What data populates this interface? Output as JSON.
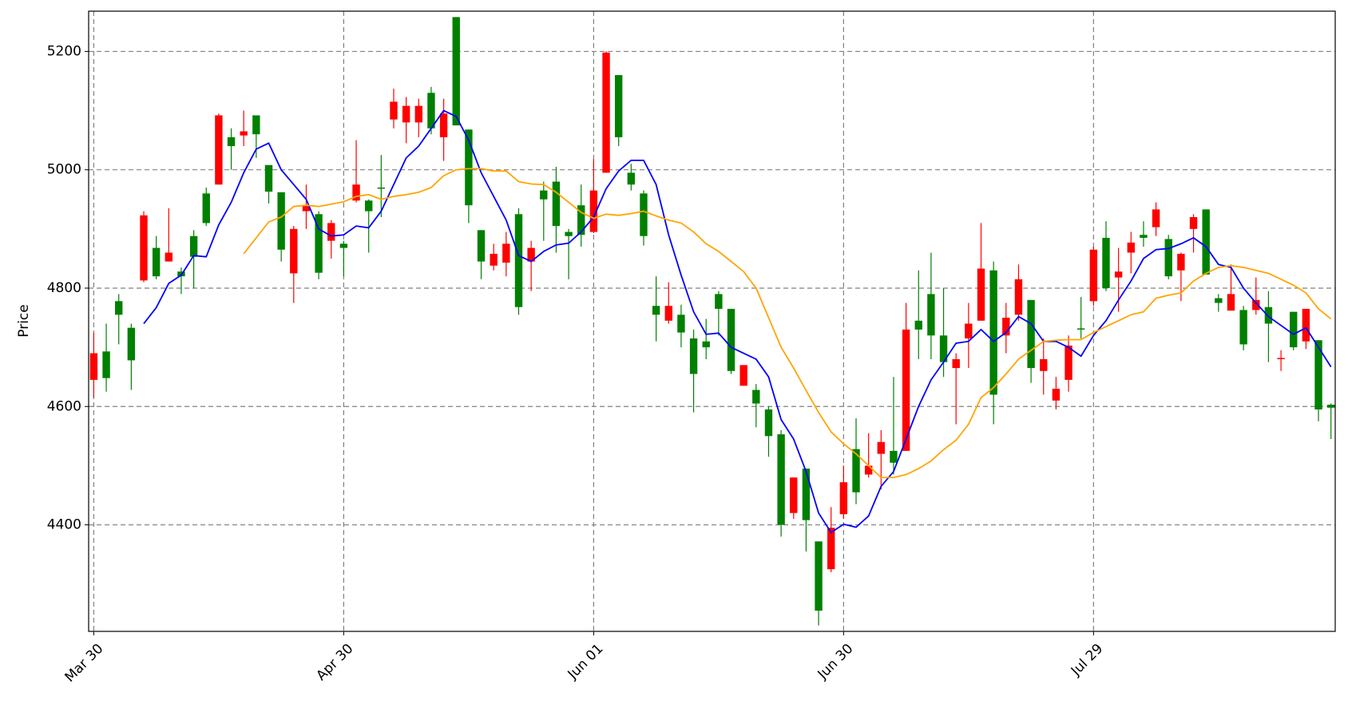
{
  "chart_data": {
    "type": "candlestick",
    "y_label": "Price",
    "up_color": "green",
    "down_color": "red",
    "grid": true,
    "xlim": [
      -0.41,
      99.34
    ],
    "xticks": [
      {
        "value": 0,
        "label": "Mar 30"
      },
      {
        "value": 20,
        "label": "Apr 30"
      },
      {
        "value": 40,
        "label": "Jun 01"
      },
      {
        "value": 60,
        "label": "Jun 30"
      },
      {
        "value": 80,
        "label": "Jul 29"
      }
    ],
    "ylim": [
      4220,
      5268
    ],
    "yticks": [
      4400,
      4600,
      4800,
      5000,
      5200
    ],
    "open": [
      4690,
      4648,
      4755,
      4678,
      4923,
      4820,
      4860,
      4820,
      4853,
      4910,
      5092,
      5040,
      5065,
      5060,
      4963,
      4865,
      4900,
      4940,
      4826,
      4910,
      4868,
      4975,
      4930,
      4968,
      5115,
      5108,
      5108,
      5070,
      5095,
      5075,
      4940,
      4845,
      4858,
      4875,
      4768,
      4868,
      4950,
      4905,
      4888,
      4890,
      4965,
      5198,
      5055,
      4975,
      4888,
      4755,
      4770,
      4725,
      4655,
      4700,
      4765,
      4660,
      4670,
      4605,
      4550,
      4400,
      4480,
      4408,
      4255,
      4395,
      4472,
      4455,
      4500,
      4540,
      4505,
      4730,
      4730,
      4720,
      4675,
      4680,
      4740,
      4833,
      4620,
      4750,
      4815,
      4665,
      4680,
      4630,
      4703,
      4730,
      4865,
      4800,
      4828,
      4877,
      4885,
      4933,
      4820,
      4858,
      4920,
      4823,
      4775,
      4790,
      4705,
      4780,
      4740,
      4682,
      4700,
      4765,
      4595,
      4598
    ],
    "high": [
      4725,
      4740,
      4790,
      4740,
      4930,
      4888,
      4935,
      4835,
      4898,
      4970,
      5095,
      5070,
      5100,
      5092,
      5008,
      4962,
      4905,
      4975,
      4930,
      4915,
      4880,
      5050,
      4950,
      5025,
      5137,
      5123,
      5120,
      5140,
      5120,
      5258,
      5068,
      4898,
      4875,
      4895,
      4935,
      4880,
      4980,
      5005,
      4900,
      4975,
      5018,
      5200,
      5160,
      5010,
      4965,
      4820,
      4810,
      4772,
      4730,
      4748,
      4795,
      4765,
      4670,
      4638,
      4600,
      4560,
      4480,
      4495,
      4372,
      4430,
      4500,
      4580,
      4555,
      4560,
      4650,
      4775,
      4830,
      4860,
      4800,
      4690,
      4775,
      4910,
      4845,
      4775,
      4840,
      4780,
      4715,
      4650,
      4720,
      4785,
      4870,
      4913,
      4868,
      4895,
      4913,
      4945,
      4890,
      4860,
      4925,
      4933,
      4790,
      4840,
      4770,
      4818,
      4795,
      4695,
      4760,
      4765,
      4712,
      4605
    ],
    "low": [
      4615,
      4625,
      4705,
      4628,
      4810,
      4815,
      4845,
      4790,
      4800,
      4905,
      4975,
      5000,
      5040,
      5020,
      4943,
      4845,
      4775,
      4900,
      4815,
      4850,
      4820,
      4945,
      4860,
      4920,
      5070,
      5045,
      5055,
      5060,
      5015,
      5075,
      4910,
      4815,
      4830,
      4820,
      4755,
      4795,
      4880,
      4860,
      4815,
      4870,
      4893,
      4995,
      5040,
      4965,
      4872,
      4710,
      4740,
      4700,
      4590,
      4680,
      4720,
      4655,
      4635,
      4565,
      4515,
      4380,
      4410,
      4355,
      4230,
      4320,
      4410,
      4435,
      4480,
      4460,
      4485,
      4525,
      4680,
      4680,
      4650,
      4570,
      4665,
      4745,
      4570,
      4690,
      4745,
      4640,
      4620,
      4595,
      4625,
      4715,
      4770,
      4795,
      4760,
      4825,
      4870,
      4888,
      4815,
      4778,
      4860,
      4823,
      4760,
      4762,
      4695,
      4755,
      4675,
      4660,
      4695,
      4697,
      4575,
      4545
    ],
    "close": [
      4645,
      4693,
      4778,
      4733,
      4813,
      4868,
      4845,
      4828,
      4888,
      4960,
      4975,
      5055,
      5058,
      5092,
      5008,
      4962,
      4825,
      4930,
      4925,
      4880,
      4875,
      4948,
      4948,
      4970,
      5085,
      5080,
      5080,
      5130,
      5055,
      5258,
      5068,
      4898,
      4838,
      4843,
      4925,
      4845,
      4965,
      4980,
      4895,
      4940,
      4895,
      4995,
      5160,
      4995,
      4960,
      4770,
      4745,
      4755,
      4715,
      4710,
      4790,
      4765,
      4635,
      4628,
      4595,
      4553,
      4420,
      4495,
      4372,
      4325,
      4418,
      4528,
      4485,
      4520,
      4525,
      4525,
      4745,
      4790,
      4720,
      4665,
      4715,
      4745,
      4830,
      4720,
      4755,
      4780,
      4660,
      4610,
      4645,
      4732,
      4778,
      4885,
      4818,
      4860,
      4890,
      4903,
      4883,
      4830,
      4900,
      4933,
      4783,
      4762,
      4763,
      4763,
      4768,
      4680,
      4760,
      4710,
      4712,
      4603
    ],
    "series": [
      {
        "color": "blue",
        "values": [
          null,
          null,
          null,
          null,
          4740,
          4767,
          4808,
          4822,
          4855,
          4853,
          4907,
          4945,
          4995,
          5035,
          5045,
          5000,
          4975,
          4950,
          4900,
          4888,
          4890,
          4905,
          4902,
          4930,
          4975,
          5020,
          5040,
          5070,
          5100,
          5090,
          5050,
          4995,
          4955,
          4915,
          4855,
          4845,
          4862,
          4873,
          4876,
          4895,
          4920,
          4968,
          4998,
          5016,
          5016,
          4975,
          4890,
          4822,
          4760,
          4722,
          4724,
          4700,
          4690,
          4680,
          4650,
          4578,
          4545,
          4490,
          4420,
          4387,
          4401,
          4396,
          4415,
          4465,
          4490,
          4545,
          4600,
          4645,
          4675,
          4707,
          4710,
          4730,
          4710,
          4725,
          4752,
          4740,
          4710,
          4710,
          4700,
          4685,
          4720,
          4745,
          4780,
          4812,
          4850,
          4865,
          4867,
          4875,
          4885,
          4870,
          4840,
          4835,
          4800,
          4775,
          4752,
          4737,
          4722,
          4733,
          4700,
          4667
        ]
      },
      {
        "color": "orange",
        "values": [
          null,
          null,
          null,
          null,
          null,
          null,
          null,
          null,
          null,
          null,
          null,
          null,
          4858,
          4885,
          4912,
          4920,
          4938,
          4940,
          4938,
          4942,
          4946,
          4955,
          4958,
          4950,
          4955,
          4958,
          4962,
          4970,
          4990,
          5000,
          5002,
          5002,
          4998,
          4998,
          4980,
          4976,
          4975,
          4962,
          4945,
          4928,
          4918,
          4925,
          4923,
          4926,
          4930,
          4922,
          4915,
          4910,
          4895,
          4875,
          4862,
          4845,
          4828,
          4800,
          4750,
          4700,
          4665,
          4627,
          4590,
          4557,
          4537,
          4520,
          4500,
          4480,
          4480,
          4485,
          4495,
          4508,
          4527,
          4543,
          4570,
          4615,
          4632,
          4655,
          4680,
          4695,
          4710,
          4712,
          4713,
          4713,
          4725,
          4735,
          4745,
          4755,
          4760,
          4783,
          4788,
          4792,
          4812,
          4825,
          4835,
          4838,
          4835,
          4830,
          4825,
          4815,
          4805,
          4792,
          4765,
          4748
        ]
      }
    ]
  }
}
